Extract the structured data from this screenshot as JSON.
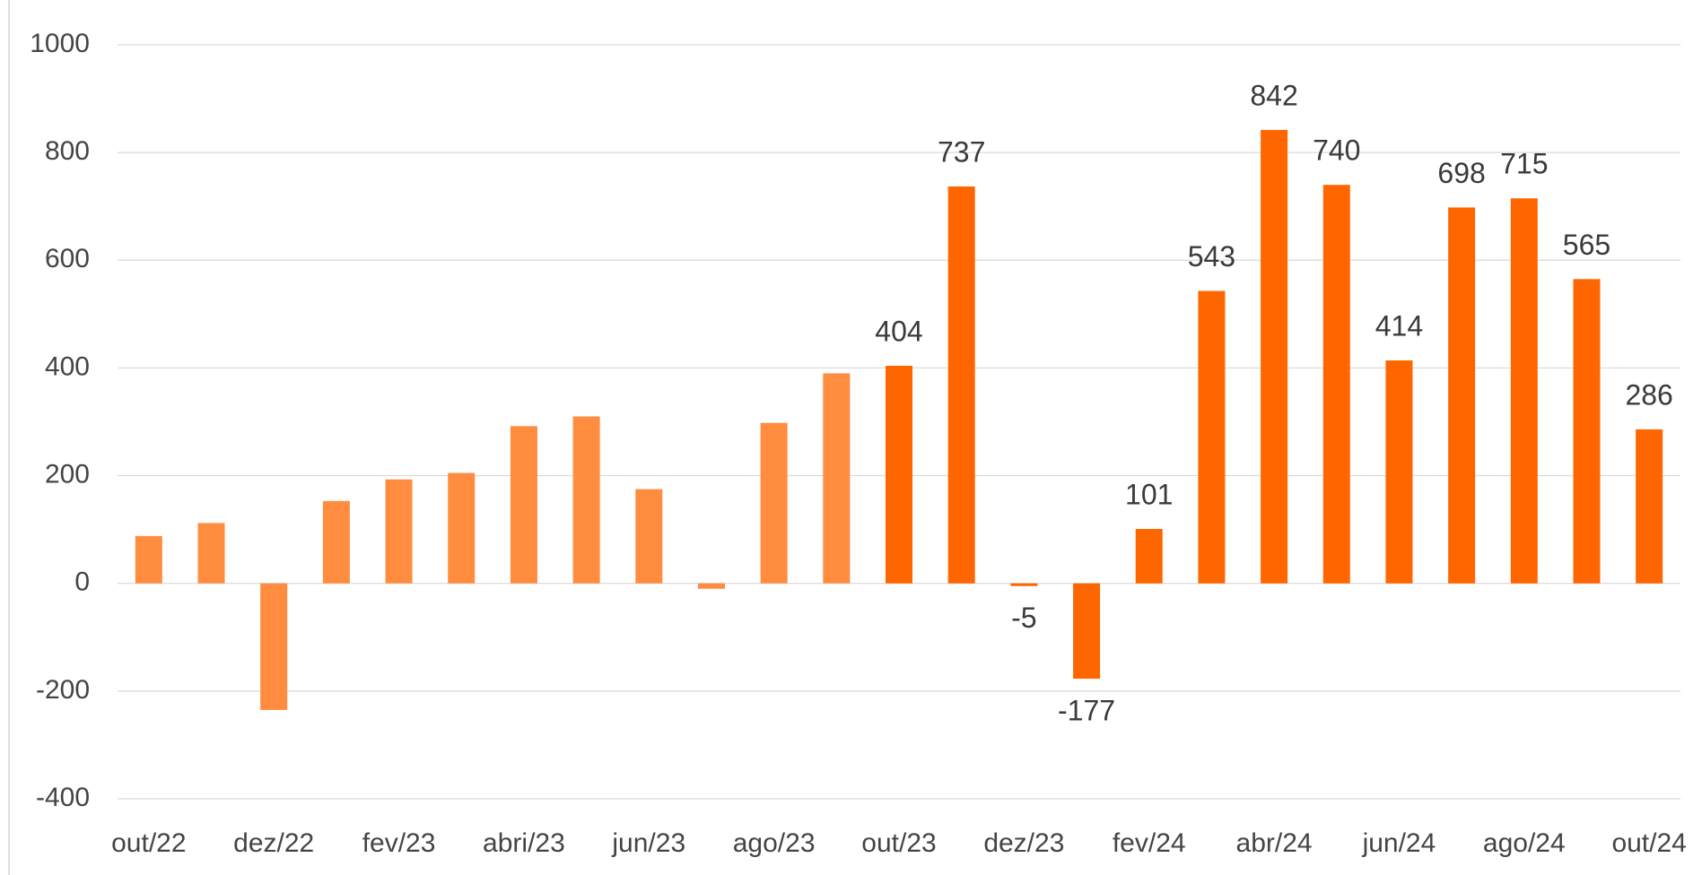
{
  "chart_data": {
    "type": "bar",
    "categories": [
      "out/22",
      null,
      "dez/22",
      null,
      "fev/23",
      null,
      "abri/23",
      null,
      "jun/23",
      null,
      "ago/23",
      null,
      "out/23",
      null,
      "dez/23",
      null,
      "fev/24",
      null,
      "abr/24",
      null,
      "jun/24",
      null,
      "ago/24",
      null,
      "out/24"
    ],
    "values": [
      88,
      112,
      -235,
      153,
      193,
      205,
      292,
      310,
      175,
      -10,
      298,
      390,
      404,
      737,
      -5,
      -177,
      101,
      543,
      842,
      740,
      414,
      698,
      715,
      565,
      286
    ],
    "value_labels": [
      null,
      null,
      null,
      null,
      null,
      null,
      null,
      null,
      null,
      null,
      null,
      null,
      "404",
      "737",
      "-5",
      "-177",
      "101",
      "543",
      "842",
      "740",
      "414",
      "698",
      "715",
      "565",
      "286"
    ],
    "colors": [
      "#ff8c3f",
      "#ff8c3f",
      "#ff8c3f",
      "#ff8c3f",
      "#ff8c3f",
      "#ff8c3f",
      "#ff8c3f",
      "#ff8c3f",
      "#ff8c3f",
      "#ff8c3f",
      "#ff8c3f",
      "#ff8c3f",
      "#ff6600",
      "#ff6600",
      "#ff6600",
      "#ff6600",
      "#ff6600",
      "#ff6600",
      "#ff6600",
      "#ff6600",
      "#ff6600",
      "#ff6600",
      "#ff6600",
      "#ff6600",
      "#ff6600"
    ],
    "ylim": [
      -400,
      1000
    ],
    "yticks": [
      -400,
      -200,
      0,
      200,
      400,
      600,
      800,
      1000
    ],
    "grid": true
  }
}
